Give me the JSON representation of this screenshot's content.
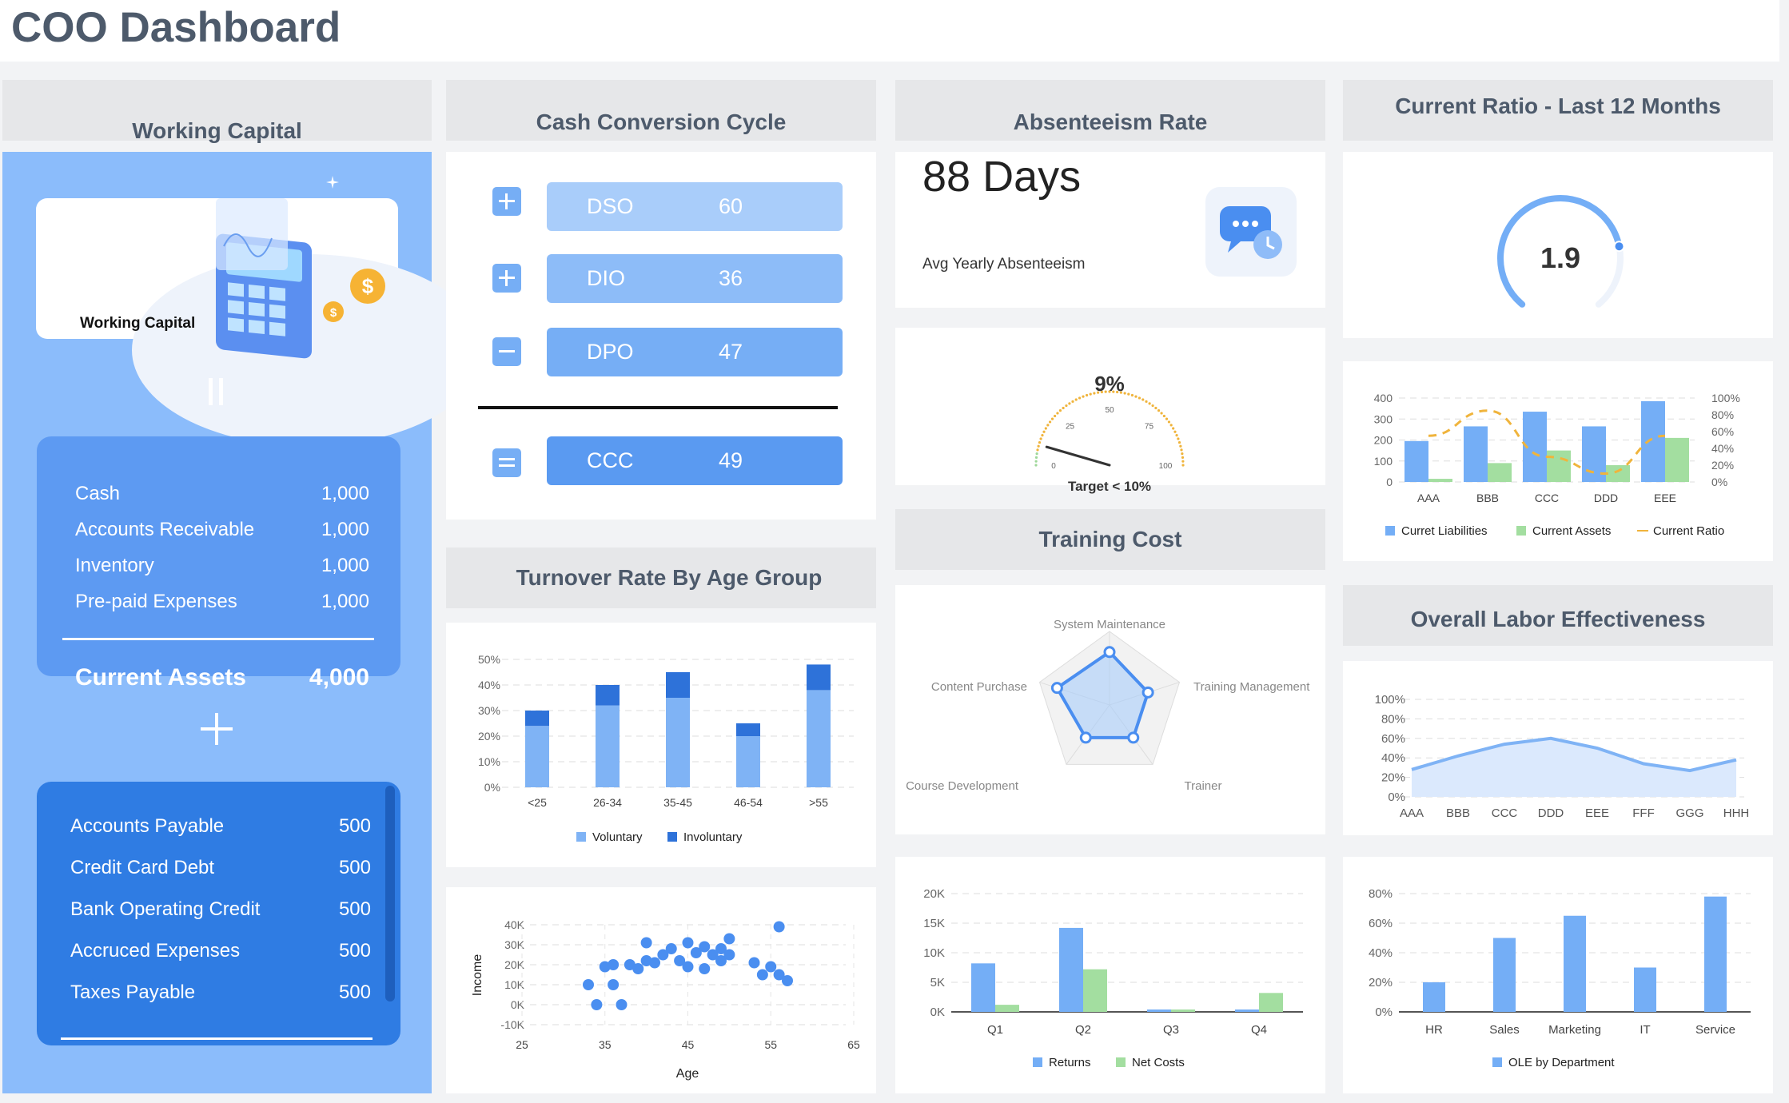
{
  "page": {
    "title": "COO Dashboard"
  },
  "working_capital": {
    "header": "Working Capital",
    "card_label": "Working Capital",
    "equals_symbol": "=",
    "plus_symbol": "+",
    "assets": [
      {
        "label": "Cash",
        "value": "1,000"
      },
      {
        "label": "Accounts Receivable",
        "value": "1,000"
      },
      {
        "label": "Inventory",
        "value": "1,000"
      },
      {
        "label": "Pre-paid Expenses",
        "value": "1,000"
      }
    ],
    "assets_total": {
      "label": "Current Assets",
      "value": "4,000"
    },
    "liabilities": [
      {
        "label": "Accounts Payable",
        "value": "500"
      },
      {
        "label": "Credit Card Debt",
        "value": "500"
      },
      {
        "label": "Bank Operating Credit",
        "value": "500"
      },
      {
        "label": "Accruced Expenses",
        "value": "500"
      },
      {
        "label": "Taxes Payable",
        "value": "500"
      }
    ]
  },
  "cash_conversion_cycle": {
    "header": "Cash Conversion Cycle",
    "rows": [
      {
        "op": "+",
        "label": "DSO",
        "value": "60"
      },
      {
        "op": "+",
        "label": "DIO",
        "value": "36"
      },
      {
        "op": "−",
        "label": "DPO",
        "value": "47"
      },
      {
        "op": "=",
        "label": "CCC",
        "value": "49"
      }
    ]
  },
  "absenteeism": {
    "header": "Absenteeism Rate",
    "value": "88 Days",
    "subtitle": "Avg Yearly Absenteeism",
    "gauge_value": "9%",
    "gauge_fraction": 0.09,
    "gauge_ticks": [
      "0",
      "25",
      "50",
      "75",
      "100"
    ],
    "target_label": "Target < 10%"
  },
  "current_ratio": {
    "header": "Current Ratio - Last 12 Months",
    "value": "1.9",
    "gauge_fraction": 0.78
  },
  "training_cost": {
    "header": "Training Cost"
  },
  "overall_labor": {
    "header": "Overall Labor Effectiveness"
  },
  "turnover": {
    "header": "Turnover Rate By Age Group"
  },
  "chart_data": [
    {
      "id": "turnover",
      "type": "bar",
      "stacked": true,
      "categories": [
        "<25",
        "26-34",
        "35-45",
        "46-54",
        ">55"
      ],
      "series": [
        {
          "name": "Voluntary",
          "values": [
            24,
            32,
            35,
            20,
            38
          ],
          "color": "#7fb3f5"
        },
        {
          "name": "Involuntary",
          "values": [
            6,
            8,
            10,
            5,
            10
          ],
          "color": "#2e72d9"
        }
      ],
      "yticks": [
        "0%",
        "10%",
        "20%",
        "30%",
        "40%",
        "50%"
      ],
      "ylim": [
        0,
        50
      ],
      "legend": "bottom"
    },
    {
      "id": "income_age",
      "type": "scatter",
      "xlabel": "Age",
      "ylabel": "Income",
      "xticks": [
        "25",
        "35",
        "45",
        "55",
        "65"
      ],
      "xlim": [
        25,
        65
      ],
      "yticks": [
        "-10K",
        "0K",
        "10K",
        "20K",
        "30K",
        "40K"
      ],
      "ylim": [
        -10,
        40
      ],
      "points": [
        [
          33,
          10
        ],
        [
          34,
          0
        ],
        [
          35,
          19
        ],
        [
          36,
          20
        ],
        [
          36,
          10
        ],
        [
          37,
          0
        ],
        [
          38,
          20
        ],
        [
          39,
          18
        ],
        [
          40,
          22
        ],
        [
          40,
          31
        ],
        [
          41,
          21
        ],
        [
          42,
          25
        ],
        [
          43,
          28
        ],
        [
          44,
          22
        ],
        [
          45,
          19
        ],
        [
          45,
          31
        ],
        [
          46,
          26
        ],
        [
          47,
          18
        ],
        [
          47,
          29
        ],
        [
          48,
          25
        ],
        [
          49,
          22
        ],
        [
          49,
          28
        ],
        [
          50,
          25
        ],
        [
          50,
          33
        ],
        [
          53,
          21
        ],
        [
          54,
          15
        ],
        [
          55,
          19
        ],
        [
          56,
          15
        ],
        [
          56,
          39
        ],
        [
          57,
          12
        ]
      ],
      "color": "#4a8ef0"
    },
    {
      "id": "current_ratio_12m",
      "type": "bar",
      "categories": [
        "AAA",
        "BBB",
        "CCC",
        "DDD",
        "EEE"
      ],
      "series": [
        {
          "name": "Curret Liabilities",
          "values": [
            195,
            265,
            335,
            265,
            385
          ],
          "color": "#74aef6"
        },
        {
          "name": "Current Assets",
          "values": [
            15,
            90,
            150,
            80,
            210
          ],
          "color": "#a3dea0"
        },
        {
          "name": "Current Ratio",
          "type": "line",
          "values": [
            55,
            85,
            30,
            10,
            55
          ],
          "color": "#f0b43c",
          "axis": "right"
        }
      ],
      "yticks_left": [
        "0",
        "100",
        "200",
        "300",
        "400"
      ],
      "ylim_left": [
        0,
        400
      ],
      "yticks_right": [
        "0%",
        "20%",
        "40%",
        "60%",
        "80%",
        "100%"
      ],
      "ylim_right": [
        0,
        100
      ],
      "legend": "bottom"
    },
    {
      "id": "training_radar",
      "type": "radar",
      "axes": [
        "System Maintenance",
        "Training Management",
        "Trainer",
        "Course Development",
        "Content Purchase"
      ],
      "values": [
        0.72,
        0.55,
        0.55,
        0.55,
        0.75
      ],
      "color": "#4a8ef0"
    },
    {
      "id": "returns_costs",
      "type": "bar",
      "categories": [
        "Q1",
        "Q2",
        "Q3",
        "Q4"
      ],
      "series": [
        {
          "name": "Returns",
          "values": [
            8200,
            14200,
            400,
            400
          ],
          "color": "#74aef6"
        },
        {
          "name": "Net Costs",
          "values": [
            1200,
            7200,
            400,
            3200
          ],
          "color": "#a3dea0"
        }
      ],
      "yticks": [
        "0K",
        "5K",
        "10K",
        "15K",
        "20K"
      ],
      "ylim": [
        0,
        20000
      ],
      "legend": "bottom"
    },
    {
      "id": "labor_area",
      "type": "area",
      "categories": [
        "AAA",
        "BBB",
        "CCC",
        "DDD",
        "EEE",
        "FFF",
        "GGG",
        "HHH"
      ],
      "values": [
        28,
        42,
        54,
        60,
        50,
        34,
        27,
        38
      ],
      "yticks": [
        "0%",
        "20%",
        "40%",
        "60%",
        "80%",
        "100%"
      ],
      "ylim": [
        0,
        100
      ],
      "color": "#7fb3f5"
    },
    {
      "id": "ole_dept",
      "type": "bar",
      "categories": [
        "HR",
        "Sales",
        "Marketing",
        "IT",
        "Service"
      ],
      "series": [
        {
          "name": "OLE by Department",
          "values": [
            20,
            50,
            65,
            30,
            78
          ],
          "color": "#74aef6"
        }
      ],
      "yticks": [
        "0%",
        "20%",
        "40%",
        "60%",
        "80%"
      ],
      "ylim": [
        0,
        80
      ],
      "legend": "bottom"
    }
  ]
}
